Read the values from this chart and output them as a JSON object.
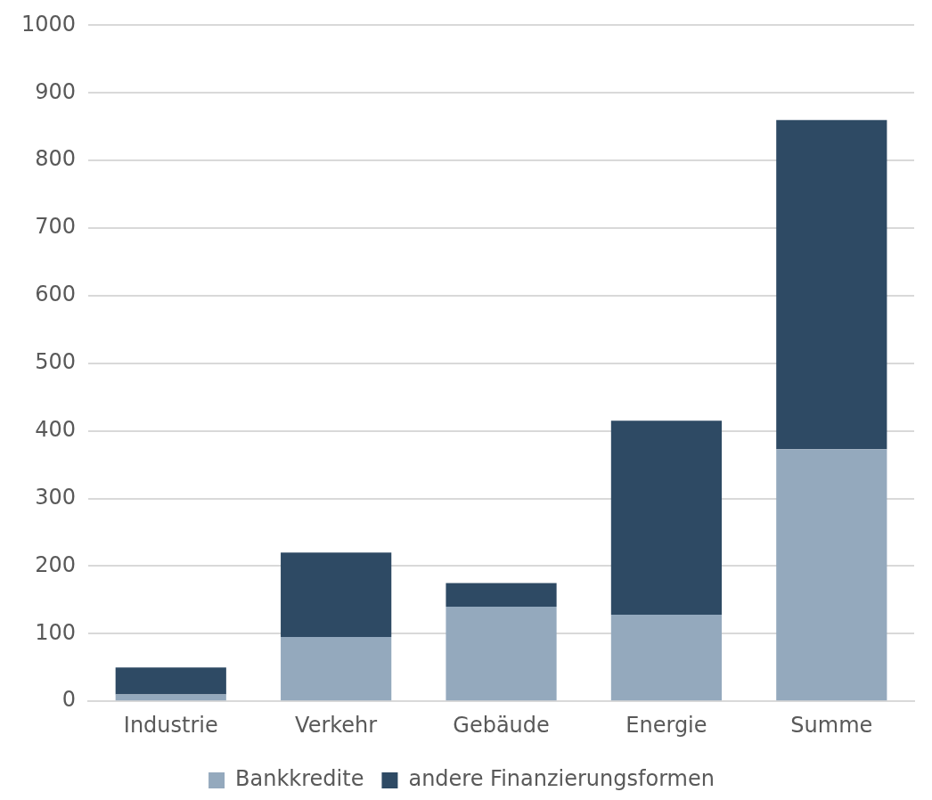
{
  "chart_data": {
    "type": "bar",
    "stacked": true,
    "categories": [
      "Industrie",
      "Verkehr",
      "Gebäude",
      "Energie",
      "Summe"
    ],
    "series": [
      {
        "name": "Bankkredite",
        "color": "#94a9bd",
        "values": [
          10,
          95,
          140,
          128,
          373
        ]
      },
      {
        "name": "andere Finanzierungsformen",
        "color": "#2e4a64",
        "values": [
          40,
          125,
          35,
          287,
          487
        ]
      }
    ],
    "ylim": [
      0,
      1000
    ],
    "yticks": [
      0,
      100,
      200,
      300,
      400,
      500,
      600,
      700,
      800,
      900,
      1000
    ],
    "grid": "y",
    "legend": "bottom"
  }
}
